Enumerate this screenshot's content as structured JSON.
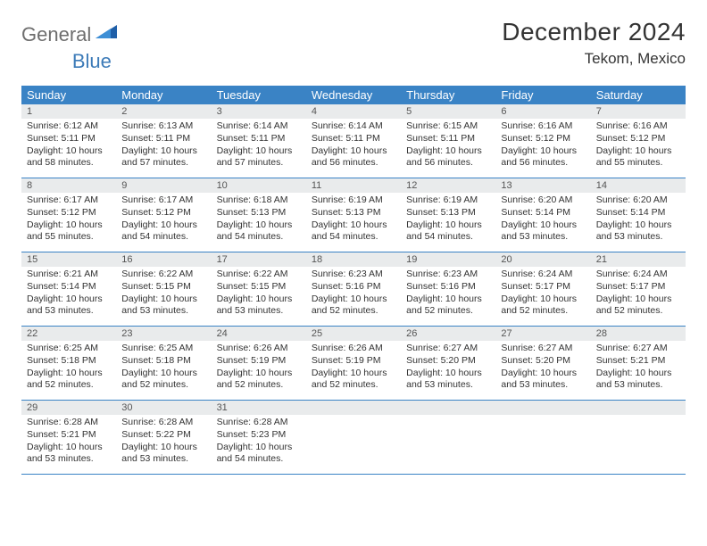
{
  "brand": {
    "part1": "General",
    "part2": "Blue"
  },
  "title": "December 2024",
  "location": "Tekom, Mexico",
  "colors": {
    "header_bg": "#3a83c5",
    "header_text": "#ffffff",
    "daynum_bg": "#e9ebec",
    "border": "#3a83c5",
    "logo_gray": "#6e6e6e",
    "logo_blue": "#3d7bb8"
  },
  "weekdays": [
    "Sunday",
    "Monday",
    "Tuesday",
    "Wednesday",
    "Thursday",
    "Friday",
    "Saturday"
  ],
  "days": [
    {
      "n": "1",
      "sunrise": "6:12 AM",
      "sunset": "5:11 PM",
      "daylight": "10 hours and 58 minutes."
    },
    {
      "n": "2",
      "sunrise": "6:13 AM",
      "sunset": "5:11 PM",
      "daylight": "10 hours and 57 minutes."
    },
    {
      "n": "3",
      "sunrise": "6:14 AM",
      "sunset": "5:11 PM",
      "daylight": "10 hours and 57 minutes."
    },
    {
      "n": "4",
      "sunrise": "6:14 AM",
      "sunset": "5:11 PM",
      "daylight": "10 hours and 56 minutes."
    },
    {
      "n": "5",
      "sunrise": "6:15 AM",
      "sunset": "5:11 PM",
      "daylight": "10 hours and 56 minutes."
    },
    {
      "n": "6",
      "sunrise": "6:16 AM",
      "sunset": "5:12 PM",
      "daylight": "10 hours and 56 minutes."
    },
    {
      "n": "7",
      "sunrise": "6:16 AM",
      "sunset": "5:12 PM",
      "daylight": "10 hours and 55 minutes."
    },
    {
      "n": "8",
      "sunrise": "6:17 AM",
      "sunset": "5:12 PM",
      "daylight": "10 hours and 55 minutes."
    },
    {
      "n": "9",
      "sunrise": "6:17 AM",
      "sunset": "5:12 PM",
      "daylight": "10 hours and 54 minutes."
    },
    {
      "n": "10",
      "sunrise": "6:18 AM",
      "sunset": "5:13 PM",
      "daylight": "10 hours and 54 minutes."
    },
    {
      "n": "11",
      "sunrise": "6:19 AM",
      "sunset": "5:13 PM",
      "daylight": "10 hours and 54 minutes."
    },
    {
      "n": "12",
      "sunrise": "6:19 AM",
      "sunset": "5:13 PM",
      "daylight": "10 hours and 54 minutes."
    },
    {
      "n": "13",
      "sunrise": "6:20 AM",
      "sunset": "5:14 PM",
      "daylight": "10 hours and 53 minutes."
    },
    {
      "n": "14",
      "sunrise": "6:20 AM",
      "sunset": "5:14 PM",
      "daylight": "10 hours and 53 minutes."
    },
    {
      "n": "15",
      "sunrise": "6:21 AM",
      "sunset": "5:14 PM",
      "daylight": "10 hours and 53 minutes."
    },
    {
      "n": "16",
      "sunrise": "6:22 AM",
      "sunset": "5:15 PM",
      "daylight": "10 hours and 53 minutes."
    },
    {
      "n": "17",
      "sunrise": "6:22 AM",
      "sunset": "5:15 PM",
      "daylight": "10 hours and 53 minutes."
    },
    {
      "n": "18",
      "sunrise": "6:23 AM",
      "sunset": "5:16 PM",
      "daylight": "10 hours and 52 minutes."
    },
    {
      "n": "19",
      "sunrise": "6:23 AM",
      "sunset": "5:16 PM",
      "daylight": "10 hours and 52 minutes."
    },
    {
      "n": "20",
      "sunrise": "6:24 AM",
      "sunset": "5:17 PM",
      "daylight": "10 hours and 52 minutes."
    },
    {
      "n": "21",
      "sunrise": "6:24 AM",
      "sunset": "5:17 PM",
      "daylight": "10 hours and 52 minutes."
    },
    {
      "n": "22",
      "sunrise": "6:25 AM",
      "sunset": "5:18 PM",
      "daylight": "10 hours and 52 minutes."
    },
    {
      "n": "23",
      "sunrise": "6:25 AM",
      "sunset": "5:18 PM",
      "daylight": "10 hours and 52 minutes."
    },
    {
      "n": "24",
      "sunrise": "6:26 AM",
      "sunset": "5:19 PM",
      "daylight": "10 hours and 52 minutes."
    },
    {
      "n": "25",
      "sunrise": "6:26 AM",
      "sunset": "5:19 PM",
      "daylight": "10 hours and 52 minutes."
    },
    {
      "n": "26",
      "sunrise": "6:27 AM",
      "sunset": "5:20 PM",
      "daylight": "10 hours and 53 minutes."
    },
    {
      "n": "27",
      "sunrise": "6:27 AM",
      "sunset": "5:20 PM",
      "daylight": "10 hours and 53 minutes."
    },
    {
      "n": "28",
      "sunrise": "6:27 AM",
      "sunset": "5:21 PM",
      "daylight": "10 hours and 53 minutes."
    },
    {
      "n": "29",
      "sunrise": "6:28 AM",
      "sunset": "5:21 PM",
      "daylight": "10 hours and 53 minutes."
    },
    {
      "n": "30",
      "sunrise": "6:28 AM",
      "sunset": "5:22 PM",
      "daylight": "10 hours and 53 minutes."
    },
    {
      "n": "31",
      "sunrise": "6:28 AM",
      "sunset": "5:23 PM",
      "daylight": "10 hours and 54 minutes."
    }
  ],
  "labels": {
    "sunrise": "Sunrise: ",
    "sunset": "Sunset: ",
    "daylight": "Daylight: "
  }
}
